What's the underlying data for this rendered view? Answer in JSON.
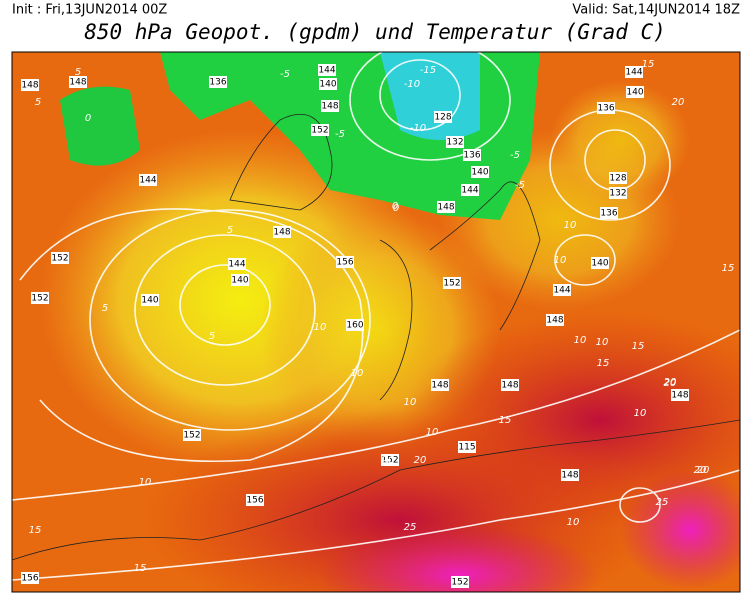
{
  "header": {
    "init": "Init : Fri,13JUN2014 00Z",
    "valid": "Valid: Sat,14JUN2014 18Z",
    "title": "850 hPa Geopot. (gpdm) und Temperatur (Grad C)"
  },
  "map": {
    "height_labels": [
      "148",
      "136",
      "144",
      "140",
      "148",
      "152",
      "128",
      "132",
      "136",
      "140",
      "144",
      "148",
      "144",
      "140",
      "136",
      "128",
      "132",
      "136",
      "140",
      "144",
      "148",
      "152",
      "140",
      "144",
      "148",
      "156",
      "160",
      "152",
      "148",
      "148",
      "152",
      "115",
      "148",
      "148",
      "156",
      "152",
      "156",
      "152",
      "140",
      "144",
      "148",
      "152"
    ],
    "temperature_labels": [
      "5",
      "5",
      "0",
      "-5",
      "-5",
      "0",
      "-10",
      "-10",
      "-15",
      "-5",
      "-5",
      "15",
      "20",
      "10",
      "10",
      "10",
      "5",
      "5",
      "5",
      "10",
      "10",
      "15",
      "10",
      "10",
      "15",
      "15",
      "20",
      "20",
      "10",
      "10",
      "10",
      "20",
      "20",
      "15",
      "25",
      "25",
      "15",
      "15",
      "20",
      "20",
      "10",
      "0"
    ]
  }
}
